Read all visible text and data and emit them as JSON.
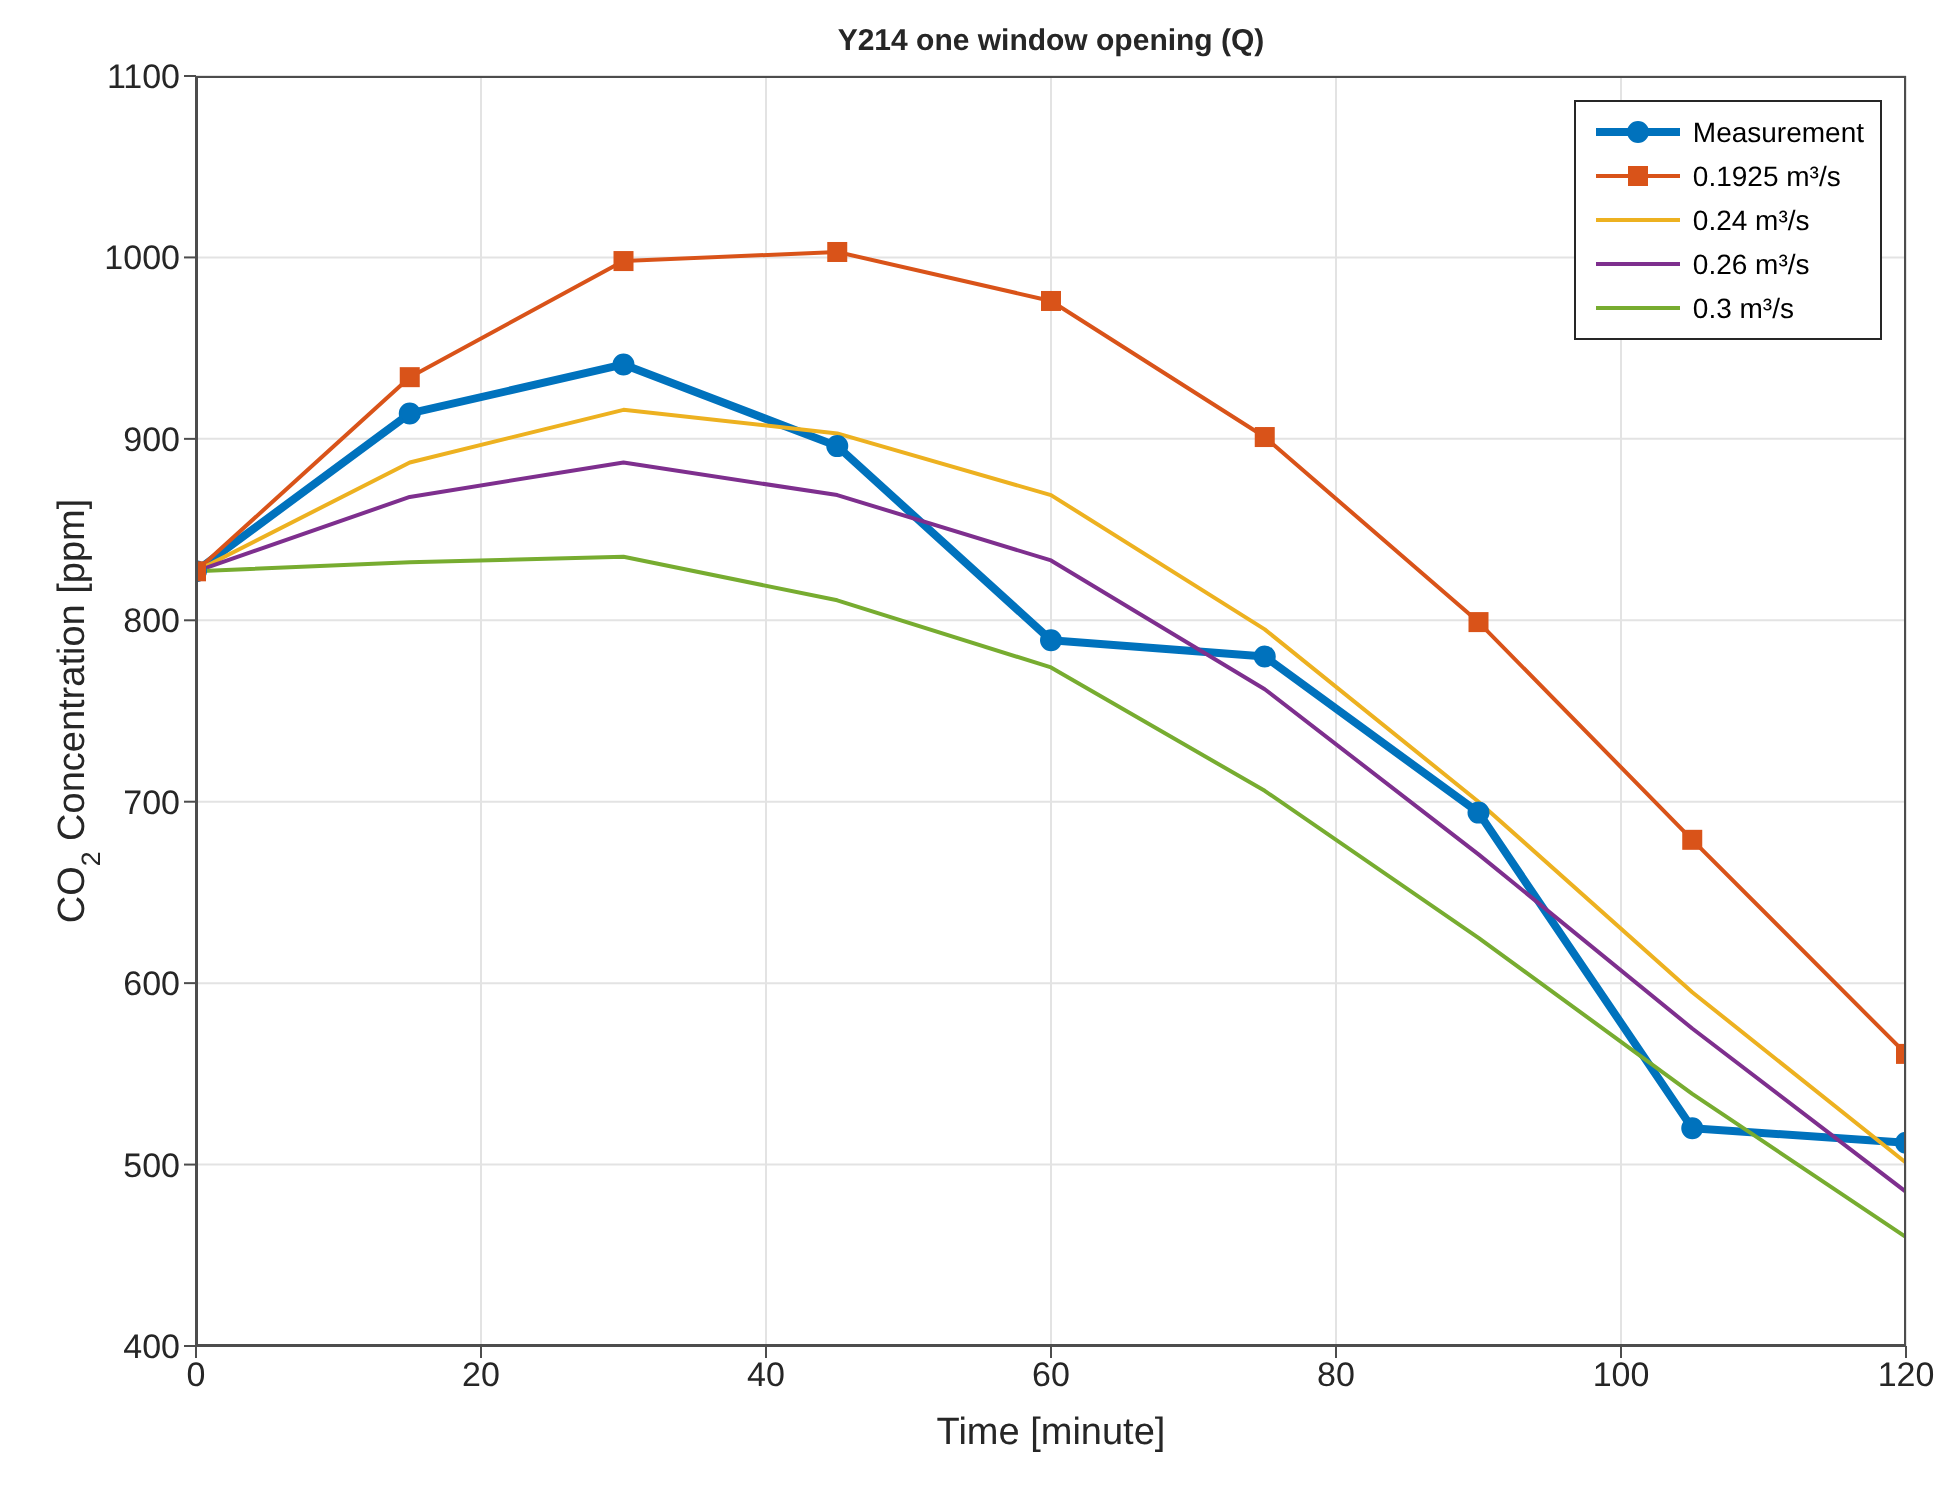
{
  "chart_data": {
    "type": "line",
    "title": "Y214 one window opening (Q)",
    "xlabel": "Time [minute]",
    "ylabel": "CO$_{2}$ Concentration [ppm]",
    "x": [
      0,
      15,
      30,
      45,
      60,
      75,
      90,
      105,
      120
    ],
    "series": [
      {
        "name": "Measurement",
        "color": "#0072bd",
        "marker": "circle",
        "values": [
          827,
          914,
          941,
          896,
          789,
          780,
          694,
          520,
          512
        ]
      },
      {
        "name": "0.1925 m³/s",
        "color": "#d95319",
        "marker": "square",
        "values": [
          827,
          934,
          998,
          1003,
          976,
          901,
          799,
          679,
          561
        ]
      },
      {
        "name": "0.24 m³/s",
        "color": "#edb120",
        "marker": "none",
        "values": [
          827,
          887,
          916,
          903,
          869,
          795,
          700,
          595,
          501
        ]
      },
      {
        "name": "0.26 m³/s",
        "color": "#7e2f8e",
        "marker": "none",
        "values": [
          827,
          868,
          887,
          869,
          833,
          762,
          671,
          575,
          485
        ]
      },
      {
        "name": "0.3 m³/s",
        "color": "#77ac30",
        "marker": "none",
        "values": [
          827,
          832,
          835,
          811,
          774,
          706,
          625,
          539,
          460
        ]
      }
    ],
    "xlim": [
      0,
      120
    ],
    "xticks": [
      0,
      20,
      40,
      60,
      80,
      100,
      120
    ],
    "ylim": [
      400,
      1100
    ],
    "yticks": [
      400,
      500,
      600,
      700,
      800,
      900,
      1000,
      1100
    ],
    "grid": true,
    "legend": "top right",
    "line_style": "solid"
  }
}
